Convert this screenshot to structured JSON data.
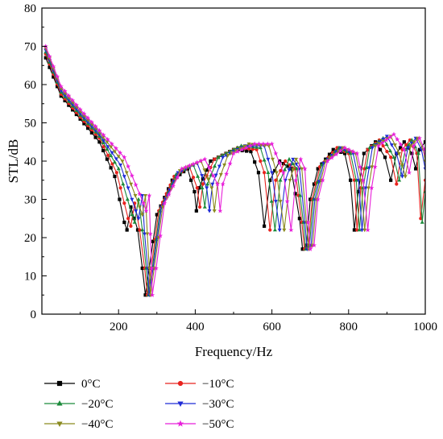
{
  "chart_data": {
    "type": "line",
    "title": "",
    "xlabel": "Frequency/Hz",
    "ylabel": "STL/dB",
    "xlim": [
      0,
      1000
    ],
    "ylim": [
      0,
      80
    ],
    "x_ticks": [
      200,
      400,
      600,
      800,
      1000
    ],
    "x_tick_labels": [
      "200",
      "400",
      "600",
      "800",
      "1000"
    ],
    "y_ticks": [
      0,
      10,
      20,
      30,
      40,
      50,
      60,
      70,
      80
    ],
    "y_tick_labels": [
      "0",
      "10",
      "20",
      "30",
      "40",
      "50",
      "60",
      "70",
      "80"
    ],
    "grid": false,
    "legend_position": "bottom",
    "series": [
      {
        "name": "0°C",
        "color": "#000000",
        "marker": "square",
        "points": [
          [
            10,
            67
          ],
          [
            50,
            57
          ],
          [
            100,
            51
          ],
          [
            150,
            45
          ],
          [
            190,
            36
          ],
          [
            215,
            24
          ],
          [
            222,
            22
          ],
          [
            232,
            28
          ],
          [
            250,
            22
          ],
          [
            262,
            12
          ],
          [
            270,
            5
          ],
          [
            280,
            12
          ],
          [
            300,
            26
          ],
          [
            340,
            35
          ],
          [
            380,
            38
          ],
          [
            398,
            32
          ],
          [
            403,
            27
          ],
          [
            410,
            33
          ],
          [
            440,
            40
          ],
          [
            500,
            43
          ],
          [
            545,
            42.5
          ],
          [
            565,
            37
          ],
          [
            580,
            23
          ],
          [
            595,
            35
          ],
          [
            620,
            40
          ],
          [
            650,
            38
          ],
          [
            672,
            25
          ],
          [
            680,
            17
          ],
          [
            690,
            18
          ],
          [
            700,
            30
          ],
          [
            720,
            38
          ],
          [
            760,
            43
          ],
          [
            790,
            42
          ],
          [
            805,
            35
          ],
          [
            815,
            22
          ],
          [
            825,
            32
          ],
          [
            840,
            42
          ],
          [
            870,
            45
          ],
          [
            895,
            41
          ],
          [
            910,
            35
          ],
          [
            925,
            42
          ],
          [
            945,
            45
          ],
          [
            965,
            42
          ],
          [
            975,
            38
          ],
          [
            985,
            43
          ],
          [
            1000,
            45
          ]
        ]
      },
      {
        "name": "−10°C",
        "color": "#e8231e",
        "marker": "circle",
        "points": [
          [
            10,
            68
          ],
          [
            50,
            57.5
          ],
          [
            100,
            51.5
          ],
          [
            150,
            46
          ],
          [
            195,
            37
          ],
          [
            225,
            25
          ],
          [
            232,
            23
          ],
          [
            242,
            29
          ],
          [
            255,
            22
          ],
          [
            268,
            12
          ],
          [
            275,
            5
          ],
          [
            285,
            12
          ],
          [
            305,
            27
          ],
          [
            345,
            36
          ],
          [
            385,
            38.5
          ],
          [
            405,
            33
          ],
          [
            412,
            28
          ],
          [
            420,
            34
          ],
          [
            450,
            40.5
          ],
          [
            510,
            43.5
          ],
          [
            560,
            43
          ],
          [
            580,
            37
          ],
          [
            595,
            22
          ],
          [
            610,
            35
          ],
          [
            635,
            40
          ],
          [
            660,
            38
          ],
          [
            678,
            24
          ],
          [
            685,
            17
          ],
          [
            695,
            18
          ],
          [
            705,
            30
          ],
          [
            725,
            38.5
          ],
          [
            770,
            43.5
          ],
          [
            800,
            42
          ],
          [
            815,
            35
          ],
          [
            822,
            22
          ],
          [
            832,
            33
          ],
          [
            850,
            43
          ],
          [
            880,
            45.5
          ],
          [
            910,
            41
          ],
          [
            925,
            34
          ],
          [
            940,
            43
          ],
          [
            960,
            45.5
          ],
          [
            978,
            42
          ],
          [
            988,
            25
          ],
          [
            1000,
            35
          ]
        ]
      },
      {
        "name": "−20°C",
        "color": "#1b8a3a",
        "marker": "triangle-up",
        "points": [
          [
            10,
            68.5
          ],
          [
            50,
            58
          ],
          [
            100,
            52
          ],
          [
            150,
            46.5
          ],
          [
            200,
            38
          ],
          [
            235,
            26
          ],
          [
            242,
            24
          ],
          [
            252,
            30
          ],
          [
            262,
            22
          ],
          [
            272,
            12
          ],
          [
            278,
            5
          ],
          [
            288,
            12
          ],
          [
            308,
            27
          ],
          [
            350,
            36.5
          ],
          [
            395,
            39
          ],
          [
            418,
            33
          ],
          [
            425,
            28
          ],
          [
            432,
            34
          ],
          [
            460,
            41
          ],
          [
            520,
            44
          ],
          [
            570,
            43.5
          ],
          [
            590,
            37
          ],
          [
            608,
            22
          ],
          [
            622,
            35
          ],
          [
            645,
            40.5
          ],
          [
            665,
            38
          ],
          [
            682,
            24
          ],
          [
            688,
            17
          ],
          [
            698,
            18
          ],
          [
            708,
            30
          ],
          [
            730,
            39
          ],
          [
            775,
            43.5
          ],
          [
            805,
            42
          ],
          [
            820,
            35
          ],
          [
            828,
            22
          ],
          [
            838,
            33
          ],
          [
            855,
            43.5
          ],
          [
            890,
            46
          ],
          [
            918,
            41
          ],
          [
            932,
            35
          ],
          [
            948,
            43
          ],
          [
            965,
            45.5
          ],
          [
            982,
            42
          ],
          [
            992,
            24
          ],
          [
            1000,
            32
          ]
        ]
      },
      {
        "name": "−30°C",
        "color": "#1f2bd6",
        "marker": "triangle-down",
        "points": [
          [
            10,
            69
          ],
          [
            50,
            58.5
          ],
          [
            100,
            52.5
          ],
          [
            150,
            47
          ],
          [
            205,
            39
          ],
          [
            245,
            27
          ],
          [
            252,
            25
          ],
          [
            262,
            31
          ],
          [
            268,
            21
          ],
          [
            276,
            12
          ],
          [
            280,
            5
          ],
          [
            290,
            12
          ],
          [
            312,
            28
          ],
          [
            355,
            37
          ],
          [
            405,
            39.5
          ],
          [
            430,
            33
          ],
          [
            437,
            27
          ],
          [
            445,
            34
          ],
          [
            472,
            41
          ],
          [
            530,
            44
          ],
          [
            580,
            44
          ],
          [
            600,
            37
          ],
          [
            620,
            22
          ],
          [
            635,
            35
          ],
          [
            655,
            40.5
          ],
          [
            672,
            38
          ],
          [
            686,
            24
          ],
          [
            692,
            17
          ],
          [
            702,
            18
          ],
          [
            712,
            30
          ],
          [
            735,
            39.5
          ],
          [
            780,
            43.5
          ],
          [
            812,
            42
          ],
          [
            826,
            35
          ],
          [
            835,
            22
          ],
          [
            845,
            33
          ],
          [
            862,
            43.5
          ],
          [
            900,
            46.5
          ],
          [
            925,
            42
          ],
          [
            940,
            36
          ],
          [
            955,
            43.5
          ],
          [
            975,
            46
          ],
          [
            990,
            43
          ],
          [
            1000,
            38
          ]
        ]
      },
      {
        "name": "−40°C",
        "color": "#8a8a1e",
        "marker": "triangle-down",
        "points": [
          [
            10,
            69.5
          ],
          [
            50,
            59
          ],
          [
            100,
            53
          ],
          [
            150,
            47.5
          ],
          [
            210,
            40
          ],
          [
            255,
            28
          ],
          [
            262,
            26
          ],
          [
            270,
            31
          ],
          [
            275,
            21
          ],
          [
            280,
            12
          ],
          [
            283,
            5
          ],
          [
            293,
            12
          ],
          [
            315,
            28
          ],
          [
            360,
            37.5
          ],
          [
            415,
            40
          ],
          [
            443,
            33
          ],
          [
            450,
            27
          ],
          [
            458,
            34
          ],
          [
            485,
            41.5
          ],
          [
            540,
            44.5
          ],
          [
            592,
            44
          ],
          [
            612,
            37
          ],
          [
            632,
            22
          ],
          [
            647,
            35
          ],
          [
            663,
            40.5
          ],
          [
            678,
            38
          ],
          [
            690,
            24
          ],
          [
            696,
            17
          ],
          [
            706,
            18
          ],
          [
            716,
            30
          ],
          [
            740,
            40
          ],
          [
            785,
            43.5
          ],
          [
            818,
            42
          ],
          [
            832,
            35
          ],
          [
            842,
            22
          ],
          [
            852,
            33
          ],
          [
            870,
            44
          ],
          [
            910,
            46.5
          ],
          [
            932,
            42
          ],
          [
            948,
            36
          ],
          [
            962,
            44
          ],
          [
            980,
            46
          ],
          [
            995,
            43
          ],
          [
            1000,
            40
          ]
        ]
      },
      {
        "name": "−50°C",
        "color": "#e81fd9",
        "marker": "star",
        "points": [
          [
            10,
            70
          ],
          [
            50,
            59.5
          ],
          [
            100,
            53.5
          ],
          [
            150,
            48
          ],
          [
            215,
            41
          ],
          [
            265,
            29
          ],
          [
            272,
            27
          ],
          [
            280,
            31
          ],
          [
            283,
            21
          ],
          [
            286,
            12
          ],
          [
            288,
            5
          ],
          [
            298,
            12
          ],
          [
            320,
            29
          ],
          [
            365,
            38
          ],
          [
            425,
            40.5
          ],
          [
            458,
            34
          ],
          [
            465,
            27
          ],
          [
            472,
            34
          ],
          [
            500,
            42
          ],
          [
            555,
            44.5
          ],
          [
            600,
            44.5
          ],
          [
            630,
            37
          ],
          [
            650,
            22
          ],
          [
            662,
            35
          ],
          [
            675,
            40.5
          ],
          [
            686,
            38
          ],
          [
            694,
            24
          ],
          [
            700,
            17
          ],
          [
            710,
            18
          ],
          [
            720,
            30
          ],
          [
            745,
            40
          ],
          [
            790,
            43.5
          ],
          [
            822,
            42
          ],
          [
            838,
            35
          ],
          [
            850,
            22
          ],
          [
            860,
            33
          ],
          [
            878,
            44
          ],
          [
            918,
            47
          ],
          [
            945,
            43
          ],
          [
            958,
            37
          ],
          [
            970,
            44
          ],
          [
            985,
            46
          ],
          [
            998,
            43
          ],
          [
            1000,
            42
          ]
        ]
      }
    ]
  }
}
